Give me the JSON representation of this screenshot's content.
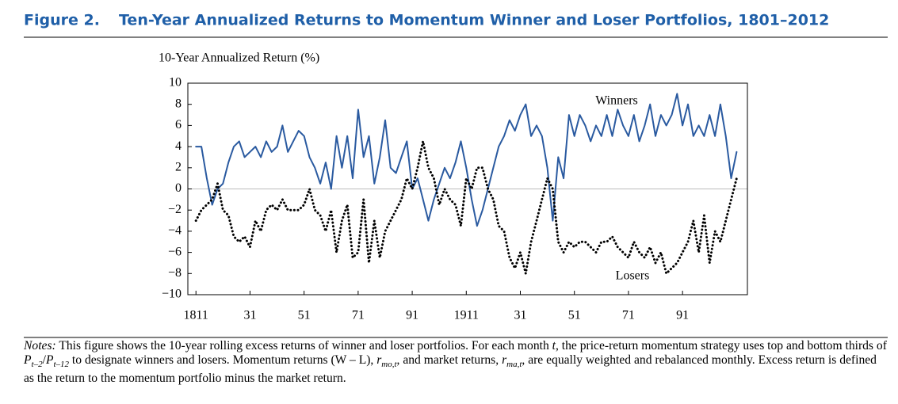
{
  "header": {
    "figure": "Figure 2.",
    "title": "Ten-Year Annualized Returns to Momentum Winner and Loser Portfolios, 1801–2012"
  },
  "chart_data": {
    "type": "line",
    "ylabel": "10-Year Annualized Return (%)",
    "x": [
      1811,
      1813,
      1815,
      1817,
      1819,
      1821,
      1823,
      1825,
      1827,
      1829,
      1831,
      1833,
      1835,
      1837,
      1839,
      1841,
      1843,
      1845,
      1847,
      1849,
      1851,
      1853,
      1855,
      1857,
      1859,
      1861,
      1863,
      1865,
      1867,
      1869,
      1871,
      1873,
      1875,
      1877,
      1879,
      1881,
      1883,
      1885,
      1887,
      1889,
      1891,
      1893,
      1895,
      1897,
      1899,
      1901,
      1903,
      1905,
      1907,
      1909,
      1911,
      1913,
      1915,
      1917,
      1919,
      1921,
      1923,
      1925,
      1927,
      1929,
      1931,
      1933,
      1935,
      1937,
      1939,
      1941,
      1943,
      1945,
      1947,
      1949,
      1951,
      1953,
      1955,
      1957,
      1959,
      1961,
      1963,
      1965,
      1967,
      1969,
      1971,
      1973,
      1975,
      1977,
      1979,
      1981,
      1983,
      1985,
      1987,
      1989,
      1991,
      1993,
      1995,
      1997,
      1999,
      2001,
      2003,
      2005,
      2007,
      2009,
      2011
    ],
    "series": [
      {
        "name": "Winners",
        "color": "#2a5aa0",
        "style": "solid",
        "values": [
          4,
          4,
          1,
          -1.5,
          0,
          0.5,
          2.5,
          4,
          4.5,
          3,
          3.5,
          4,
          3,
          4.5,
          3.5,
          4,
          6,
          3.5,
          4.5,
          5.5,
          5,
          3,
          2,
          0.5,
          2.5,
          0,
          5,
          2,
          5,
          1,
          7.5,
          3,
          5,
          0.5,
          3,
          6.5,
          2,
          1.5,
          3,
          4.5,
          0,
          1,
          -1,
          -3,
          -1,
          0.5,
          2,
          1,
          2.5,
          4.5,
          2,
          -1,
          -3.5,
          -2,
          0,
          2,
          4,
          5,
          6.5,
          5.5,
          7,
          8,
          5,
          6,
          5,
          2,
          -3,
          3,
          1,
          7,
          5,
          7,
          6,
          4.5,
          6,
          5,
          7,
          5,
          7.5,
          6,
          5,
          7,
          4.5,
          6,
          8,
          5,
          7,
          6,
          7,
          9,
          6,
          8,
          5,
          6,
          5,
          7,
          5,
          8,
          5,
          1,
          3.5
        ]
      },
      {
        "name": "Losers",
        "color": "#000000",
        "style": "dotted",
        "values": [
          -3,
          -2,
          -1.5,
          -1,
          0.5,
          -2,
          -2.5,
          -4.5,
          -5,
          -4.5,
          -5.5,
          -3,
          -4,
          -2,
          -1.5,
          -2,
          -1,
          -2,
          -2,
          -2,
          -1.5,
          0,
          -2,
          -2.5,
          -4,
          -2,
          -6,
          -3,
          -1.5,
          -6.5,
          -6,
          -1,
          -7,
          -3,
          -6.5,
          -4,
          -3,
          -2,
          -1,
          1,
          0,
          2,
          4.5,
          2,
          1,
          -1.5,
          0,
          -1,
          -1.5,
          -3.5,
          1,
          0,
          2,
          2,
          0,
          -1,
          -3.5,
          -4,
          -6.5,
          -7.5,
          -6,
          -8,
          -5,
          -3,
          -1,
          1,
          0,
          -5,
          -6,
          -5,
          -5.5,
          -5,
          -5,
          -5.5,
          -6,
          -5,
          -5,
          -4.5,
          -5.5,
          -6,
          -6.5,
          -5,
          -6,
          -6.5,
          -5.5,
          -7,
          -6,
          -8,
          -7.5,
          -7,
          -6,
          -5,
          -3,
          -6,
          -2.5,
          -7,
          -4,
          -5,
          -3,
          -1,
          1
        ]
      }
    ],
    "xlim": [
      1808,
      2015
    ],
    "xticks": [
      {
        "value": 1811,
        "label": "1811"
      },
      {
        "value": 1831,
        "label": "31"
      },
      {
        "value": 1851,
        "label": "51"
      },
      {
        "value": 1871,
        "label": "71"
      },
      {
        "value": 1891,
        "label": "91"
      },
      {
        "value": 1911,
        "label": "1911"
      },
      {
        "value": 1931,
        "label": "31"
      },
      {
        "value": 1951,
        "label": "51"
      },
      {
        "value": 1971,
        "label": "71"
      },
      {
        "value": 1991,
        "label": "91"
      }
    ],
    "ylim": [
      -10,
      10
    ],
    "yticks": [
      {
        "value": -10,
        "label": "−10"
      },
      {
        "value": -8,
        "label": "−8"
      },
      {
        "value": -6,
        "label": "−6"
      },
      {
        "value": -4,
        "label": "−4"
      },
      {
        "value": -2,
        "label": "−2"
      },
      0,
      2,
      4,
      6,
      8,
      10
    ],
    "zero_line": true
  },
  "notes": [
    "Notes:",
    " This figure shows the 10-year rolling excess returns of winner and loser portfolios. For each month ",
    "t",
    ", the price-return momentum strategy uses top and bottom thirds of ",
    "P",
    "t–2",
    "/",
    "P",
    "t–12",
    " to designate winners and losers. Momentum returns (W – L), ",
    "r",
    "mo,t",
    ", and market returns, ",
    "r",
    "ma,t",
    ", are equally weighted and rebalanced monthly. Excess return is defined as the return to the momentum portfolio minus the market return."
  ]
}
